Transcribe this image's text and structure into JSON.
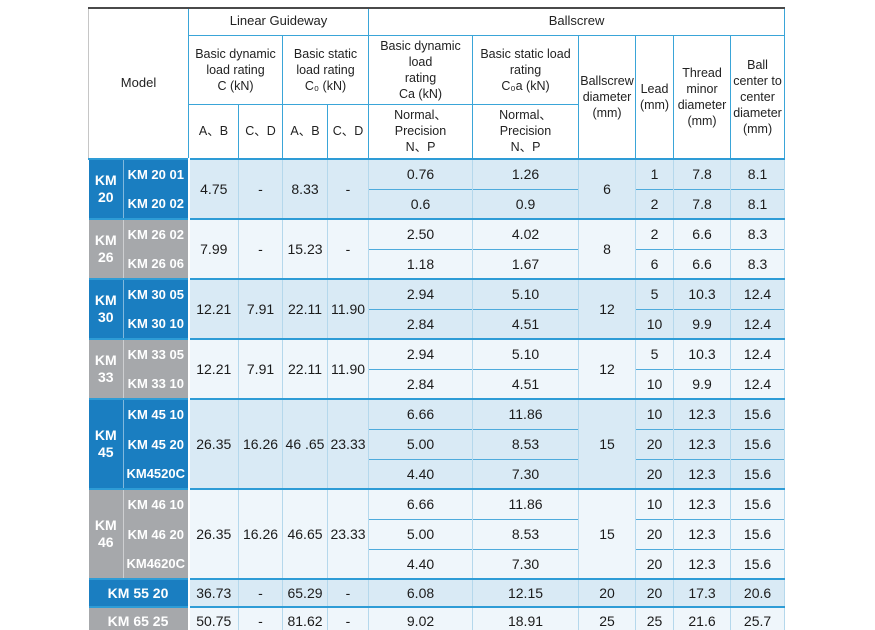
{
  "colors": {
    "model_blue": "#1a7ec1",
    "model_gray": "#a6a8ab",
    "row_bg_blue_group": "#d9eaf5",
    "row_bg_gray_group": "#eff6fb",
    "header_border": "#3aa5d8",
    "group_separator": "#2e9cd6",
    "row_separator": "#4fabdc",
    "top_border": "#4a4a4a",
    "bottom_border": "#2a9fd8",
    "text": "#1b1b1b"
  },
  "header": {
    "model": "Model",
    "linear_guideway": "Linear Guideway",
    "ballscrew": "Ballscrew",
    "c_dynamic": "Basic dynamic\nload rating\nC (kN)",
    "c_static": "Basic static\nload rating\nC₀ (kN)",
    "ca_dynamic": "Basic dynamic load\nrating\nCa (kN)",
    "c0a_static": "Basic static load\nrating\nC₀a (kN)",
    "sub_ab": "A、B",
    "sub_cd": "C、D",
    "normal_precision": "Normal、\nPrecision\nN、P",
    "ballscrew_diameter": "Ballscrew\ndiameter\n(mm)",
    "lead": "Lead\n(mm)",
    "thread_minor": "Thread\nminor\ndiameter\n(mm)",
    "ball_center": "Ball\ncenter to\ncenter\ndiameter\n(mm)"
  },
  "groups": [
    {
      "label": "KM 20",
      "color": "blue",
      "models": [
        "KM 20 01",
        "KM 20 02"
      ],
      "C_AB": "4.75",
      "C_CD": "-",
      "C0_AB": "8.33",
      "C0_CD": "-",
      "Ca": [
        "0.76",
        "0.6"
      ],
      "C0a": [
        "1.26",
        "0.9"
      ],
      "diameter": "6",
      "lead": [
        "1",
        "2"
      ],
      "thread": [
        "7.8",
        "7.8"
      ],
      "ball": [
        "8.1",
        "8.1"
      ]
    },
    {
      "label": "KM 26",
      "color": "gray",
      "models": [
        "KM 26 02",
        "KM 26 06"
      ],
      "C_AB": "7.99",
      "C_CD": "-",
      "C0_AB": "15.23",
      "C0_CD": "-",
      "Ca": [
        "2.50",
        "1.18"
      ],
      "C0a": [
        "4.02",
        "1.67"
      ],
      "diameter": "8",
      "lead": [
        "2",
        "6"
      ],
      "thread": [
        "6.6",
        "6.6"
      ],
      "ball": [
        "8.3",
        "8.3"
      ]
    },
    {
      "label": "KM 30",
      "color": "blue",
      "models": [
        "KM 30 05",
        "KM 30 10"
      ],
      "C_AB": "12.21",
      "C_CD": "7.91",
      "C0_AB": "22.11",
      "C0_CD": "11.90",
      "Ca": [
        "2.94",
        "2.84"
      ],
      "C0a": [
        "5.10",
        "4.51"
      ],
      "diameter": "12",
      "lead": [
        "5",
        "10"
      ],
      "thread": [
        "10.3",
        "9.9"
      ],
      "ball": [
        "12.4",
        "12.4"
      ]
    },
    {
      "label": "KM 33",
      "color": "gray",
      "models": [
        "KM 33 05",
        "KM 33 10"
      ],
      "C_AB": "12.21",
      "C_CD": "7.91",
      "C0_AB": "22.11",
      "C0_CD": "11.90",
      "Ca": [
        "2.94",
        "2.84"
      ],
      "C0a": [
        "5.10",
        "4.51"
      ],
      "diameter": "12",
      "lead": [
        "5",
        "10"
      ],
      "thread": [
        "10.3",
        "9.9"
      ],
      "ball": [
        "12.4",
        "12.4"
      ]
    },
    {
      "label": "KM 45",
      "color": "blue",
      "models": [
        "KM 45 10",
        "KM 45 20",
        "KM4520C"
      ],
      "C_AB": "26.35",
      "C_CD": "16.26",
      "C0_AB": "46 .65",
      "C0_CD": "23.33",
      "Ca": [
        "6.66",
        "5.00",
        "4.40"
      ],
      "C0a": [
        "11.86",
        "8.53",
        "7.30"
      ],
      "diameter": "15",
      "lead": [
        "10",
        "20",
        "20"
      ],
      "thread": [
        "12.3",
        "12.3",
        "12.3"
      ],
      "ball": [
        "15.6",
        "15.6",
        "15.6"
      ]
    },
    {
      "label": "KM 46",
      "color": "gray",
      "models": [
        "KM 46 10",
        "KM 46 20",
        "KM4620C"
      ],
      "C_AB": "26.35",
      "C_CD": "16.26",
      "C0_AB": "46.65",
      "C0_CD": "23.33",
      "Ca": [
        "6.66",
        "5.00",
        "4.40"
      ],
      "C0a": [
        "11.86",
        "8.53",
        "7.30"
      ],
      "diameter": "15",
      "lead": [
        "10",
        "20",
        "20"
      ],
      "thread": [
        "12.3",
        "12.3",
        "12.3"
      ],
      "ball": [
        "15.6",
        "15.6",
        "15.6"
      ]
    },
    {
      "label": "KM 55 20",
      "color": "blue",
      "single": true,
      "models": [],
      "C_AB": "36.73",
      "C_CD": "-",
      "C0_AB": "65.29",
      "C0_CD": "-",
      "Ca": [
        "6.08"
      ],
      "C0a": [
        "12.15"
      ],
      "diameter": "20",
      "lead": [
        "20"
      ],
      "thread": [
        "17.3"
      ],
      "ball": [
        "20.6"
      ]
    },
    {
      "label": "KM 65 25",
      "color": "gray",
      "single": true,
      "models": [],
      "C_AB": "50.75",
      "C_CD": "-",
      "C0_AB": "81.62",
      "C0_CD": "-",
      "Ca": [
        "9.02"
      ],
      "C0a": [
        "18.91"
      ],
      "diameter": "25",
      "lead": [
        "25"
      ],
      "thread": [
        "21.6"
      ],
      "ball": [
        "25.7"
      ]
    }
  ]
}
